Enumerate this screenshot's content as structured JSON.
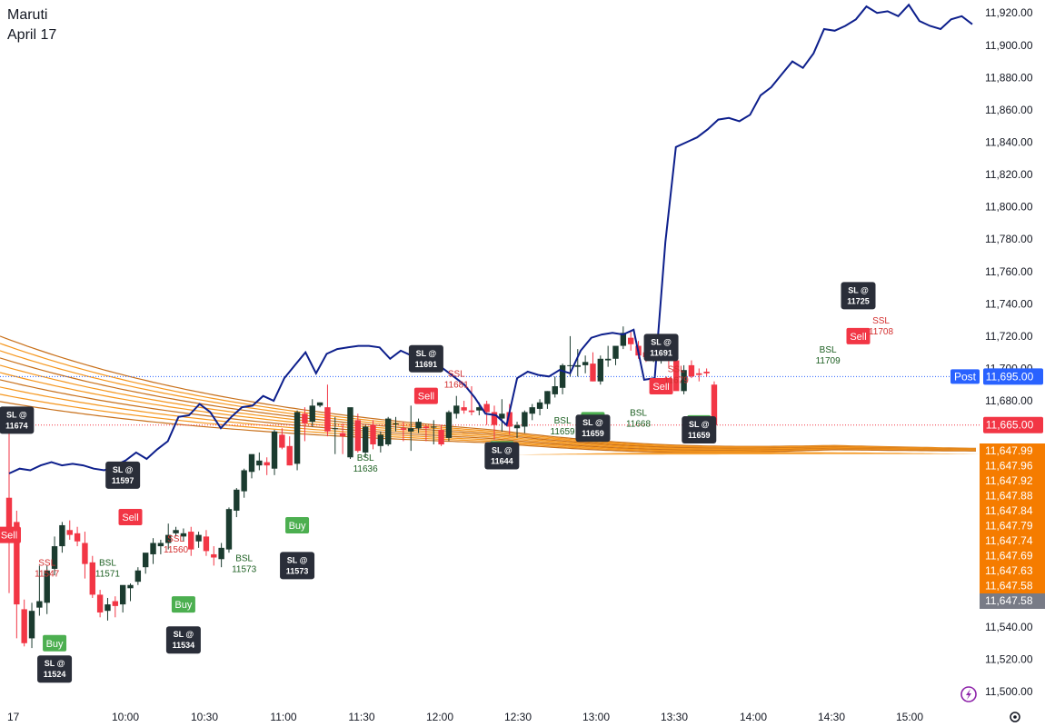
{
  "header": {
    "symbol": "Maruti",
    "date": "April 17"
  },
  "colors": {
    "up": "#1b3b2f",
    "down": "#f23645",
    "line": "#0d1f8c",
    "ribbon": "#f5961d",
    "buy": "#4caf50",
    "sell": "#f23645",
    "sl_box": "#2a2e39",
    "ssl_text": "#d32f2f",
    "bsl_text": "#1b5e20",
    "price_tag_blue": "#2962ff",
    "price_tag_red": "#f23645",
    "ribbon_tag": "#f57c00",
    "last_tag": "#787b86"
  },
  "chart_data": {
    "type": "candlestick",
    "x_ticks": [
      "17",
      "10:00",
      "10:30",
      "11:00",
      "11:30",
      "12:00",
      "12:30",
      "13:00",
      "13:30",
      "14:00",
      "14:30",
      "15:00"
    ],
    "y_ticks": [
      11500,
      11520,
      11540,
      11560,
      11580,
      11600,
      11620,
      11640,
      11660,
      11680,
      11700,
      11720,
      11740,
      11760,
      11780,
      11800,
      11820,
      11840,
      11860,
      11880,
      11900,
      11920
    ],
    "ylim": [
      11495,
      11928
    ],
    "candles": [
      [
        11620,
        11662,
        11561,
        11597
      ],
      [
        11605,
        11612,
        11533,
        11554
      ],
      [
        11551,
        11557,
        11528,
        11530
      ],
      [
        11533,
        11555,
        11527,
        11550
      ],
      [
        11552,
        11578,
        11547,
        11556
      ],
      [
        11555,
        11578,
        11548,
        11575
      ],
      [
        11576,
        11596,
        11572,
        11590
      ],
      [
        11590,
        11605,
        11586,
        11603
      ],
      [
        11600,
        11606,
        11594,
        11597
      ],
      [
        11598,
        11602,
        11590,
        11593
      ],
      [
        11592,
        11599,
        11570,
        11579
      ],
      [
        11580,
        11584,
        11558,
        11560
      ],
      [
        11560,
        11563,
        11546,
        11549
      ],
      [
        11550,
        11558,
        11544,
        11554
      ],
      [
        11556,
        11559,
        11546,
        11553
      ],
      [
        11554,
        11565,
        11549,
        11566
      ],
      [
        11564,
        11567,
        11556,
        11566
      ],
      [
        11568,
        11577,
        11566,
        11575
      ],
      [
        11577,
        11585,
        11573,
        11586
      ],
      [
        11585,
        11595,
        11579,
        11592
      ],
      [
        11590,
        11594,
        11585,
        11592
      ],
      [
        11592,
        11604,
        11588,
        11597
      ],
      [
        11598,
        11602,
        11596,
        11600
      ],
      [
        11596,
        11601,
        11593,
        11598
      ],
      [
        11599,
        11602,
        11584,
        11588
      ],
      [
        11593,
        11599,
        11589,
        11597
      ],
      [
        11596,
        11600,
        11584,
        11587
      ],
      [
        11585,
        11590,
        11578,
        11583
      ],
      [
        11582,
        11592,
        11577,
        11589
      ],
      [
        11588,
        11614,
        11586,
        11613
      ],
      [
        11612,
        11626,
        11608,
        11625
      ],
      [
        11624,
        11638,
        11620,
        11637
      ],
      [
        11636,
        11646,
        11632,
        11647
      ],
      [
        11640,
        11648,
        11637,
        11643
      ],
      [
        11642,
        11645,
        11634,
        11640
      ],
      [
        11638,
        11662,
        11634,
        11661
      ],
      [
        11659,
        11663,
        11650,
        11651
      ],
      [
        11652,
        11658,
        11640,
        11640
      ],
      [
        11641,
        11674,
        11637,
        11673
      ],
      [
        11672,
        11676,
        11655,
        11666
      ],
      [
        11667,
        11681,
        11664,
        11677
      ],
      [
        11677,
        11679,
        11676,
        11679
      ],
      [
        11676,
        11690,
        11658,
        11661
      ],
      [
        11663,
        11670,
        11647,
        11663
      ],
      [
        11660,
        11666,
        11647,
        11658
      ],
      [
        11645,
        11674,
        11644,
        11676
      ],
      [
        11668,
        11672,
        11648,
        11649
      ],
      [
        11648,
        11665,
        11645,
        11664
      ],
      [
        11665,
        11668,
        11650,
        11653
      ],
      [
        11652,
        11661,
        11648,
        11659
      ],
      [
        11653,
        11670,
        11652,
        11669
      ],
      [
        11666,
        11670,
        11661,
        11666
      ],
      [
        11663,
        11667,
        11655,
        11662
      ],
      [
        11661,
        11677,
        11649,
        11663
      ],
      [
        11663,
        11669,
        11660,
        11667
      ],
      [
        11664,
        11665,
        11655,
        11663
      ],
      [
        11664,
        11668,
        11653,
        11664
      ],
      [
        11662,
        11665,
        11652,
        11653
      ],
      [
        11657,
        11674,
        11655,
        11673
      ],
      [
        11672,
        11683,
        11669,
        11677
      ],
      [
        11676,
        11680,
        11672,
        11674
      ],
      [
        11674,
        11689,
        11671,
        11673
      ],
      [
        11674,
        11679,
        11671,
        11676
      ],
      [
        11678,
        11680,
        11665,
        11673
      ],
      [
        11673,
        11677,
        11656,
        11665
      ],
      [
        11669,
        11681,
        11661,
        11672
      ],
      [
        11673,
        11678,
        11659,
        11664
      ],
      [
        11663,
        11667,
        11657,
        11665
      ],
      [
        11664,
        11674,
        11660,
        11673
      ],
      [
        11672,
        11678,
        11668,
        11676
      ],
      [
        11675,
        11681,
        11671,
        11679
      ],
      [
        11678,
        11686,
        11675,
        11686
      ],
      [
        11684,
        11695,
        11682,
        11689
      ],
      [
        11688,
        11703,
        11684,
        11702
      ],
      [
        11702,
        11720,
        11695,
        11702
      ],
      [
        11701,
        11712,
        11695,
        11702
      ],
      [
        11702,
        11708,
        11697,
        11704
      ],
      [
        11703,
        11710,
        11692,
        11692
      ],
      [
        11692,
        11708,
        11690,
        11706
      ],
      [
        11705,
        11714,
        11701,
        11706
      ],
      [
        11706,
        11713,
        11702,
        11714
      ],
      [
        11714,
        11726,
        11712,
        11722
      ],
      [
        11719,
        11723,
        11711,
        11715
      ],
      [
        11714,
        11717,
        11706,
        11708
      ],
      [
        11710,
        11710,
        11704,
        11707
      ],
      [
        11706,
        11714,
        11704,
        11710
      ],
      [
        11709,
        11711,
        11703,
        11709
      ],
      [
        11710,
        11712,
        11700,
        11705
      ],
      [
        11705,
        11705,
        11690,
        11686
      ],
      [
        11686,
        11702,
        11684,
        11699
      ],
      [
        11702,
        11705,
        11694,
        11695
      ],
      [
        11697,
        11700,
        11692,
        11696
      ],
      [
        11698,
        11700,
        11695,
        11697
      ],
      [
        11690,
        11692,
        11665,
        11665
      ]
    ],
    "overlay_line": [
      11635,
      11638,
      11637,
      11640,
      11642,
      11640,
      11641,
      11640,
      11638,
      11637,
      11640,
      11643,
      11648,
      11644,
      11650,
      11655,
      11670,
      11671,
      11678,
      11673,
      11663,
      11670,
      11676,
      11677,
      11683,
      11680,
      11694,
      11702,
      11710,
      11697,
      11709,
      11712,
      11713,
      11714,
      11714,
      11713,
      11706,
      11711,
      11708,
      11711,
      11707,
      11700,
      11695,
      11690,
      11682,
      11672,
      11671,
      11665,
      11694,
      11698,
      11696,
      11695,
      11699,
      11697,
      11711,
      11719,
      11721,
      11722,
      11721,
      11724,
      11693,
      11694,
      11778,
      11837,
      11840,
      11843,
      11848,
      11854,
      11855,
      11853,
      11857,
      11869,
      11874,
      11882,
      11890,
      11886,
      11895,
      11910,
      11909,
      11912,
      11916,
      11924,
      11920,
      11921,
      11918,
      11925,
      11915,
      11912,
      11910,
      11916,
      11918,
      11913
    ],
    "ribbon_value": 11647.58,
    "current_price": 11665.0,
    "post_price": 11695.0,
    "ribbon_scale": [
      "11,647.99",
      "11,647.96",
      "11,647.92",
      "11,647.88",
      "11,647.84",
      "11,647.79",
      "11,647.74",
      "11,647.69",
      "11,647.63",
      "11,647.58"
    ],
    "last_ribbon": "11,647.58",
    "price_tag_post": "11,695.00",
    "price_tag_current": "11,665.00",
    "post_label": "Post",
    "signals": [
      {
        "type": "sell",
        "label": "Sell",
        "i": 0,
        "y": 11597
      },
      {
        "type": "sl",
        "label": "SL @",
        "value": "11674",
        "i": 1,
        "y": 11668
      },
      {
        "type": "ssl",
        "label": "SSL",
        "value": "11547",
        "i": 5,
        "y": 11575
      },
      {
        "type": "buy",
        "label": "Buy",
        "i": 6,
        "y": 11530
      },
      {
        "type": "sl",
        "label": "SL @",
        "value": "11524",
        "i": 6,
        "y": 11514
      },
      {
        "type": "bsl",
        "label": "BSL",
        "value": "11571",
        "i": 13,
        "y": 11575
      },
      {
        "type": "sl",
        "label": "SL @",
        "value": "11597",
        "i": 15,
        "y": 11634
      },
      {
        "type": "sell",
        "label": "Sell",
        "i": 16,
        "y": 11608
      },
      {
        "type": "ssl",
        "label": "SSL",
        "value": "11560",
        "i": 22,
        "y": 11590
      },
      {
        "type": "buy",
        "label": "Buy",
        "i": 23,
        "y": 11554
      },
      {
        "type": "sl",
        "label": "SL @",
        "value": "11534",
        "i": 23,
        "y": 11532
      },
      {
        "type": "bsl",
        "label": "BSL",
        "value": "11573",
        "i": 31,
        "y": 11578
      },
      {
        "type": "buy",
        "label": "Buy",
        "i": 38,
        "y": 11603
      },
      {
        "type": "sl",
        "label": "SL @",
        "value": "11573",
        "i": 38,
        "y": 11578
      },
      {
        "type": "bsl",
        "label": "BSL",
        "value": "11636",
        "i": 47,
        "y": 11640
      },
      {
        "type": "sl",
        "label": "SL @",
        "value": "11691",
        "i": 55,
        "y": 11706
      },
      {
        "type": "ssl",
        "label": "SSL",
        "value": "11681",
        "i": 59,
        "y": 11692
      },
      {
        "type": "sell",
        "label": "Sell",
        "i": 55,
        "y": 11683
      },
      {
        "type": "buy",
        "label": "Buy",
        "i": 65,
        "y": 11650
      },
      {
        "type": "sl",
        "label": "SL @",
        "value": "11644",
        "i": 65,
        "y": 11646
      },
      {
        "type": "bsl",
        "label": "BSL",
        "value": "11659",
        "i": 73,
        "y": 11663
      },
      {
        "type": "buy",
        "label": "Buy",
        "i": 77,
        "y": 11668
      },
      {
        "type": "sl",
        "label": "SL @",
        "value": "11659",
        "i": 77,
        "y": 11663
      },
      {
        "type": "bsl",
        "label": "BSL",
        "value": "11668",
        "i": 83,
        "y": 11668
      },
      {
        "type": "sl",
        "label": "SL @",
        "value": "11691",
        "i": 86,
        "y": 11713
      },
      {
        "type": "sell",
        "label": "Sell",
        "i": 86,
        "y": 11689
      },
      {
        "type": "ssl",
        "label": "SSL",
        "value": "11679",
        "i": 88,
        "y": 11695
      },
      {
        "type": "buy",
        "label": "Buy",
        "i": 91,
        "y": 11666
      },
      {
        "type": "sl",
        "label": "SL @",
        "value": "11659",
        "i": 91,
        "y": 11662
      },
      {
        "type": "bsl",
        "label": "BSL",
        "value": "11709",
        "i": 108,
        "y": 11707
      },
      {
        "type": "sl",
        "label": "SL @",
        "value": "11725",
        "i": 112,
        "y": 11745
      },
      {
        "type": "sell",
        "label": "Sell",
        "i": 112,
        "y": 11720
      },
      {
        "type": "ssl",
        "label": "SSL",
        "value": "11708",
        "i": 115,
        "y": 11725
      }
    ]
  }
}
